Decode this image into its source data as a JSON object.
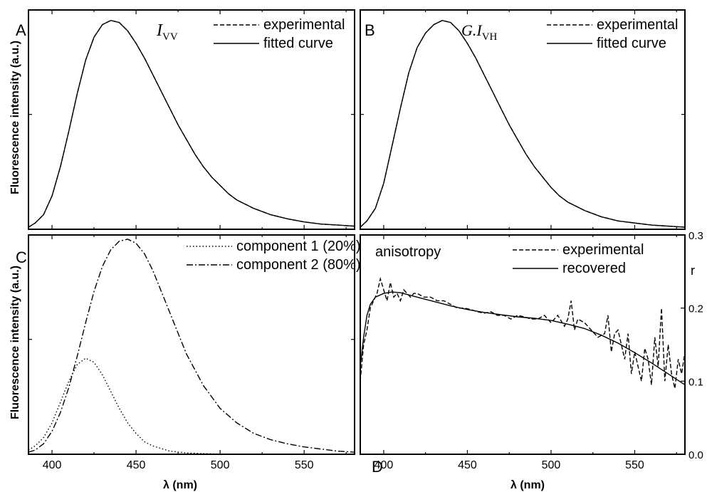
{
  "chart_data": [
    {
      "panel": "A",
      "type": "line",
      "ylabel": "Fluorescence intensity (a.u.)",
      "xlim": [
        386,
        580
      ],
      "ylim": [
        0,
        1.05
      ],
      "y_ticks": "unlabeled",
      "annotation": {
        "symbol": "I",
        "subscript": "VV"
      },
      "series": [
        {
          "name": "experimental",
          "style": "dashed",
          "x": [
            386,
            390,
            395,
            400,
            405,
            410,
            415,
            420,
            425,
            430,
            435,
            440,
            445,
            450,
            455,
            460,
            465,
            470,
            475,
            480,
            485,
            490,
            495,
            500,
            505,
            510,
            520,
            530,
            540,
            550,
            560,
            570,
            580
          ],
          "y": [
            0.01,
            0.03,
            0.07,
            0.16,
            0.3,
            0.47,
            0.65,
            0.81,
            0.92,
            0.98,
            1.0,
            0.99,
            0.95,
            0.89,
            0.82,
            0.74,
            0.66,
            0.58,
            0.5,
            0.43,
            0.36,
            0.3,
            0.25,
            0.21,
            0.17,
            0.14,
            0.1,
            0.07,
            0.05,
            0.035,
            0.025,
            0.02,
            0.015
          ]
        },
        {
          "name": "fitted curve",
          "style": "solid",
          "x": [
            386,
            390,
            395,
            400,
            405,
            410,
            415,
            420,
            425,
            430,
            435,
            440,
            445,
            450,
            455,
            460,
            465,
            470,
            475,
            480,
            485,
            490,
            495,
            500,
            505,
            510,
            520,
            530,
            540,
            550,
            560,
            570,
            580
          ],
          "y": [
            0.01,
            0.03,
            0.07,
            0.16,
            0.3,
            0.47,
            0.65,
            0.81,
            0.92,
            0.98,
            1.0,
            0.99,
            0.95,
            0.89,
            0.82,
            0.74,
            0.66,
            0.58,
            0.5,
            0.43,
            0.36,
            0.3,
            0.25,
            0.21,
            0.17,
            0.14,
            0.1,
            0.07,
            0.05,
            0.035,
            0.025,
            0.02,
            0.015
          ]
        }
      ]
    },
    {
      "panel": "B",
      "type": "line",
      "xlim": [
        386,
        580
      ],
      "ylim": [
        0,
        1.05
      ],
      "y_ticks": "unlabeled",
      "annotation": {
        "symbol": "G.I",
        "subscript": "VH"
      },
      "series": [
        {
          "name": "experimental",
          "style": "dashed",
          "x": [
            386,
            390,
            395,
            400,
            405,
            410,
            415,
            420,
            425,
            430,
            435,
            440,
            445,
            450,
            455,
            460,
            465,
            470,
            475,
            480,
            485,
            490,
            495,
            500,
            505,
            510,
            520,
            530,
            540,
            550,
            560,
            570,
            580
          ],
          "y": [
            0.01,
            0.04,
            0.1,
            0.22,
            0.4,
            0.58,
            0.75,
            0.87,
            0.94,
            0.98,
            1.0,
            0.99,
            0.95,
            0.89,
            0.82,
            0.74,
            0.66,
            0.58,
            0.5,
            0.43,
            0.36,
            0.3,
            0.25,
            0.2,
            0.16,
            0.13,
            0.09,
            0.06,
            0.04,
            0.03,
            0.02,
            0.015,
            0.01
          ]
        },
        {
          "name": "fitted curve",
          "style": "solid",
          "x": [
            386,
            390,
            395,
            400,
            405,
            410,
            415,
            420,
            425,
            430,
            435,
            440,
            445,
            450,
            455,
            460,
            465,
            470,
            475,
            480,
            485,
            490,
            495,
            500,
            505,
            510,
            520,
            530,
            540,
            550,
            560,
            570,
            580
          ],
          "y": [
            0.01,
            0.04,
            0.1,
            0.22,
            0.4,
            0.58,
            0.75,
            0.87,
            0.94,
            0.98,
            1.0,
            0.99,
            0.95,
            0.89,
            0.82,
            0.74,
            0.66,
            0.58,
            0.5,
            0.43,
            0.36,
            0.3,
            0.25,
            0.2,
            0.16,
            0.13,
            0.09,
            0.06,
            0.04,
            0.03,
            0.02,
            0.015,
            0.01
          ]
        }
      ]
    },
    {
      "panel": "C",
      "type": "line",
      "xlabel": "λ (nm)",
      "ylabel": "Fluorescence intensity (a.u.)",
      "xlim": [
        386,
        580
      ],
      "ylim": [
        0,
        1.05
      ],
      "x_ticks": [
        400,
        450,
        500,
        550
      ],
      "y_ticks": "unlabeled",
      "series": [
        {
          "name": "component 1 (20%)",
          "style": "dotted",
          "x": [
            386,
            390,
            395,
            400,
            405,
            410,
            415,
            420,
            425,
            430,
            435,
            440,
            445,
            450,
            455,
            460,
            470,
            480,
            490,
            500,
            520,
            540,
            560,
            580
          ],
          "y": [
            0.02,
            0.04,
            0.08,
            0.15,
            0.25,
            0.35,
            0.43,
            0.46,
            0.44,
            0.38,
            0.3,
            0.22,
            0.15,
            0.1,
            0.06,
            0.04,
            0.015,
            0.006,
            0.003,
            0.001,
            0,
            0,
            0,
            0
          ]
        },
        {
          "name": "component 2 (80%)",
          "style": "dashdot",
          "x": [
            386,
            390,
            395,
            400,
            405,
            410,
            415,
            420,
            425,
            430,
            435,
            440,
            445,
            450,
            455,
            460,
            465,
            470,
            475,
            480,
            490,
            500,
            510,
            520,
            530,
            540,
            550,
            560,
            570,
            580
          ],
          "y": [
            0.01,
            0.02,
            0.05,
            0.11,
            0.2,
            0.32,
            0.47,
            0.63,
            0.78,
            0.9,
            0.98,
            1.02,
            1.03,
            1.01,
            0.96,
            0.88,
            0.78,
            0.68,
            0.58,
            0.48,
            0.33,
            0.22,
            0.15,
            0.1,
            0.07,
            0.05,
            0.035,
            0.025,
            0.015,
            0.01
          ]
        }
      ]
    },
    {
      "panel": "D",
      "type": "line",
      "xlabel": "λ (nm)",
      "y2label": "r",
      "xlim": [
        386,
        580
      ],
      "y2lim": [
        0,
        0.3
      ],
      "x_ticks": [
        400,
        450,
        500,
        550
      ],
      "y2_ticks": [
        "0.0",
        "0.1",
        "0.2",
        "0.3"
      ],
      "annotation": "anisotropy",
      "panel_label": "D",
      "series": [
        {
          "name": "experimental",
          "style": "dashed",
          "x": [
            386,
            388,
            390,
            392,
            394,
            396,
            398,
            400,
            402,
            404,
            406,
            408,
            410,
            412,
            414,
            416,
            418,
            420,
            424,
            428,
            432,
            436,
            440,
            444,
            448,
            452,
            456,
            460,
            464,
            468,
            472,
            476,
            480,
            484,
            488,
            492,
            496,
            500,
            504,
            508,
            510,
            512,
            514,
            516,
            520,
            524,
            528,
            532,
            534,
            536,
            538,
            540,
            542,
            544,
            546,
            548,
            550,
            552,
            554,
            556,
            558,
            560,
            562,
            564,
            566,
            568,
            570,
            572,
            574,
            576,
            578,
            580
          ],
          "y": [
            0.1,
            0.15,
            0.17,
            0.2,
            0.21,
            0.22,
            0.24,
            0.225,
            0.21,
            0.235,
            0.215,
            0.22,
            0.21,
            0.225,
            0.22,
            0.215,
            0.22,
            0.22,
            0.215,
            0.215,
            0.21,
            0.21,
            0.205,
            0.2,
            0.2,
            0.198,
            0.195,
            0.193,
            0.195,
            0.19,
            0.19,
            0.185,
            0.19,
            0.188,
            0.185,
            0.185,
            0.19,
            0.18,
            0.19,
            0.175,
            0.185,
            0.21,
            0.17,
            0.185,
            0.18,
            0.17,
            0.16,
            0.165,
            0.19,
            0.14,
            0.165,
            0.17,
            0.15,
            0.13,
            0.165,
            0.11,
            0.14,
            0.12,
            0.1,
            0.145,
            0.13,
            0.095,
            0.16,
            0.12,
            0.2,
            0.1,
            0.15,
            0.11,
            0.09,
            0.13,
            0.11,
            0.14
          ]
        },
        {
          "name": "recovered",
          "style": "solid",
          "x": [
            386,
            388,
            390,
            392,
            395,
            400,
            405,
            410,
            415,
            420,
            430,
            440,
            450,
            460,
            470,
            480,
            490,
            500,
            510,
            520,
            530,
            540,
            550,
            560,
            570,
            580
          ],
          "y": [
            0.12,
            0.16,
            0.19,
            0.205,
            0.215,
            0.22,
            0.222,
            0.221,
            0.218,
            0.215,
            0.209,
            0.203,
            0.198,
            0.194,
            0.191,
            0.188,
            0.186,
            0.183,
            0.178,
            0.172,
            0.163,
            0.152,
            0.139,
            0.125,
            0.11,
            0.095
          ]
        }
      ]
    }
  ]
}
